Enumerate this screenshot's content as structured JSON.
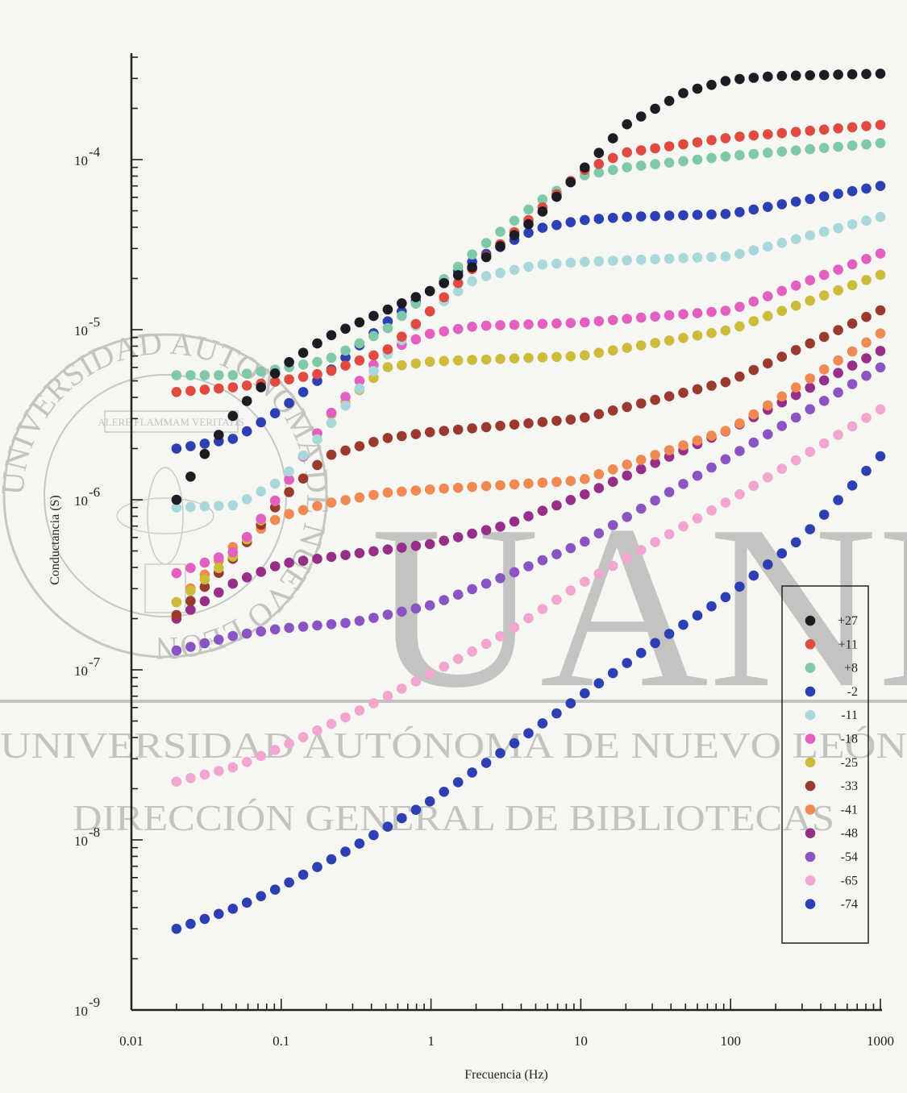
{
  "watermark": {
    "big_text": "UANL",
    "line1": "UNIVERSIDAD AUTÓNOMA DE NUEVO LEÓN",
    "line2": "DIRECCIÓN GENERAL DE BIBLIOTECAS",
    "seal_ring_text": "UNIVERSIDAD AUTONOMA DE NUEVO LEON",
    "seal_motto": "ALERE FLAMMAM VERITATIS"
  },
  "chart_data": {
    "type": "scatter",
    "title": "",
    "xlabel": "Frecuencia (Hz)",
    "ylabel": "Conductancia (S)",
    "x_scale": "log",
    "y_scale": "log",
    "xlim": [
      0.01,
      1000
    ],
    "ylim": [
      1e-09,
      0.0004
    ],
    "x_ticks": [
      {
        "value": 0.01,
        "label": "0.01"
      },
      {
        "value": 0.1,
        "label": "0.1"
      },
      {
        "value": 1,
        "label": "1"
      },
      {
        "value": 10,
        "label": "10"
      },
      {
        "value": 100,
        "label": "100"
      },
      {
        "value": 1000,
        "label": "1000"
      }
    ],
    "y_ticks": [
      {
        "value": 1e-09,
        "label": "10",
        "exp": "-9"
      },
      {
        "value": 1e-08,
        "label": "10",
        "exp": "-8"
      },
      {
        "value": 1e-07,
        "label": "10",
        "exp": "-7"
      },
      {
        "value": 1e-06,
        "label": "10",
        "exp": "-6"
      },
      {
        "value": 1e-05,
        "label": "10",
        "exp": "-5"
      },
      {
        "value": 0.0001,
        "label": "10",
        "exp": "-4"
      }
    ],
    "grid": false,
    "legend_position": "bottom-right",
    "point_frequency_range_hz": [
      0.02,
      1000
    ],
    "series": [
      {
        "name": "+27",
        "color": "#1c1c24",
        "anchors": [
          [
            0.02,
            1e-06
          ],
          [
            0.03,
            1.8e-06
          ],
          [
            0.05,
            3.3e-06
          ],
          [
            0.1,
            6e-06
          ],
          [
            0.2,
            9e-06
          ],
          [
            0.5,
            1.3e-05
          ],
          [
            1,
            1.7e-05
          ],
          [
            2,
            2.4e-05
          ],
          [
            5,
            4.5e-05
          ],
          [
            10,
            8.5e-05
          ],
          [
            20,
            0.00016
          ],
          [
            50,
            0.00025
          ],
          [
            100,
            0.000295
          ],
          [
            200,
            0.00031
          ],
          [
            1000,
            0.00032
          ]
        ]
      },
      {
        "name": "+11",
        "color": "#e04a40",
        "anchors": [
          [
            0.02,
            4.3e-06
          ],
          [
            0.05,
            4.6e-06
          ],
          [
            0.1,
            5e-06
          ],
          [
            0.2,
            5.6e-06
          ],
          [
            0.5,
            7.5e-06
          ],
          [
            1,
            1.3e-05
          ],
          [
            2,
            2.4e-05
          ],
          [
            5,
            4.8e-05
          ],
          [
            10,
            8.5e-05
          ],
          [
            20,
            0.00011
          ],
          [
            100,
            0.000135
          ],
          [
            1000,
            0.00016
          ]
        ]
      },
      {
        "name": "+8",
        "color": "#7fc9a6",
        "anchors": [
          [
            0.02,
            5.4e-06
          ],
          [
            0.05,
            5.4e-06
          ],
          [
            0.1,
            5.9e-06
          ],
          [
            0.2,
            6.6e-06
          ],
          [
            0.5,
            1e-05
          ],
          [
            1,
            1.7e-05
          ],
          [
            2,
            2.9e-05
          ],
          [
            5,
            5.5e-05
          ],
          [
            10,
            8e-05
          ],
          [
            20,
            9e-05
          ],
          [
            100,
            0.000105
          ],
          [
            1000,
            0.000125
          ]
        ]
      },
      {
        "name": "-2",
        "color": "#2c3fb3",
        "anchors": [
          [
            0.02,
            2e-06
          ],
          [
            0.05,
            2.3e-06
          ],
          [
            0.1,
            3.4e-06
          ],
          [
            0.2,
            5.5e-06
          ],
          [
            0.5,
            1.1e-05
          ],
          [
            1,
            1.7e-05
          ],
          [
            2,
            2.6e-05
          ],
          [
            5,
            3.9e-05
          ],
          [
            10,
            4.4e-05
          ],
          [
            20,
            4.6e-05
          ],
          [
            100,
            4.8e-05
          ],
          [
            1000,
            7e-05
          ]
        ]
      },
      {
        "name": "-11",
        "color": "#a8d8dc",
        "anchors": [
          [
            0.02,
            9e-07
          ],
          [
            0.05,
            9.3e-07
          ],
          [
            0.1,
            1.3e-06
          ],
          [
            0.2,
            2.6e-06
          ],
          [
            0.5,
            7e-06
          ],
          [
            1,
            1.3e-05
          ],
          [
            2,
            2e-05
          ],
          [
            5,
            2.4e-05
          ],
          [
            10,
            2.5e-05
          ],
          [
            100,
            2.7e-05
          ],
          [
            1000,
            4.6e-05
          ]
        ]
      },
      {
        "name": "-18",
        "color": "#e35fc0",
        "anchors": [
          [
            0.02,
            3.7e-07
          ],
          [
            0.05,
            5e-07
          ],
          [
            0.1,
            1.1e-06
          ],
          [
            0.2,
            3e-06
          ],
          [
            0.5,
            7.5e-06
          ],
          [
            1,
            9.5e-06
          ],
          [
            2,
            1.05e-05
          ],
          [
            10,
            1.1e-05
          ],
          [
            100,
            1.3e-05
          ],
          [
            1000,
            2.8e-05
          ]
        ]
      },
      {
        "name": "-25",
        "color": "#cdbb3c",
        "anchors": [
          [
            0.02,
            2.5e-07
          ],
          [
            0.05,
            4.8e-07
          ],
          [
            0.1,
            1.1e-06
          ],
          [
            0.2,
            3e-06
          ],
          [
            0.5,
            6e-06
          ],
          [
            1,
            6.5e-06
          ],
          [
            10,
            7e-06
          ],
          [
            100,
            1e-05
          ],
          [
            1000,
            2.1e-05
          ]
        ]
      },
      {
        "name": "-33",
        "color": "#9a3a2e",
        "anchors": [
          [
            0.02,
            2.1e-07
          ],
          [
            0.05,
            4.7e-07
          ],
          [
            0.1,
            1e-06
          ],
          [
            0.2,
            1.8e-06
          ],
          [
            0.5,
            2.3e-06
          ],
          [
            1,
            2.5e-06
          ],
          [
            10,
            3e-06
          ],
          [
            100,
            5e-06
          ],
          [
            1000,
            1.3e-05
          ]
        ]
      },
      {
        "name": "-41",
        "color": "#f08a52",
        "anchors": [
          [
            0.02,
            2.5e-07
          ],
          [
            0.05,
            5.5e-07
          ],
          [
            0.1,
            8e-07
          ],
          [
            0.2,
            9.5e-07
          ],
          [
            0.5,
            1.1e-06
          ],
          [
            1,
            1.15e-06
          ],
          [
            10,
            1.3e-06
          ],
          [
            100,
            2.6e-06
          ],
          [
            1000,
            9.5e-06
          ]
        ]
      },
      {
        "name": "-48",
        "color": "#962f88",
        "anchors": [
          [
            0.02,
            2e-07
          ],
          [
            0.05,
            3.3e-07
          ],
          [
            0.1,
            4.2e-07
          ],
          [
            0.3,
            4.8e-07
          ],
          [
            1,
            5.5e-07
          ],
          [
            3,
            7e-07
          ],
          [
            10,
            1.05e-06
          ],
          [
            100,
            2.6e-06
          ],
          [
            1000,
            7.5e-06
          ]
        ]
      },
      {
        "name": "-54",
        "color": "#8a55c3",
        "anchors": [
          [
            0.02,
            1.3e-07
          ],
          [
            0.05,
            1.6e-07
          ],
          [
            0.1,
            1.75e-07
          ],
          [
            0.3,
            1.9e-07
          ],
          [
            1,
            2.4e-07
          ],
          [
            3,
            3.5e-07
          ],
          [
            10,
            5.5e-07
          ],
          [
            100,
            1.8e-06
          ],
          [
            1000,
            6e-06
          ]
        ]
      },
      {
        "name": "-65",
        "color": "#f2a6cf",
        "anchors": [
          [
            0.02,
            2.2e-08
          ],
          [
            0.05,
            2.7e-08
          ],
          [
            0.1,
            3.5e-08
          ],
          [
            0.3,
            5.5e-08
          ],
          [
            1,
            9.5e-08
          ],
          [
            3,
            1.6e-07
          ],
          [
            10,
            3.2e-07
          ],
          [
            100,
            1e-06
          ],
          [
            1000,
            3.4e-06
          ]
        ]
      },
      {
        "name": "-74",
        "color": "#2c3fb3",
        "anchors": [
          [
            0.02,
            3e-09
          ],
          [
            0.03,
            3.4e-09
          ],
          [
            0.05,
            4e-09
          ],
          [
            0.1,
            5.3e-09
          ],
          [
            0.3,
            9e-09
          ],
          [
            1,
            1.7e-08
          ],
          [
            3,
            3.3e-08
          ],
          [
            10,
            7e-08
          ],
          [
            30,
            1.4e-07
          ],
          [
            100,
            2.8e-07
          ],
          [
            300,
            6e-07
          ],
          [
            1000,
            1.8e-06
          ]
        ]
      }
    ]
  }
}
